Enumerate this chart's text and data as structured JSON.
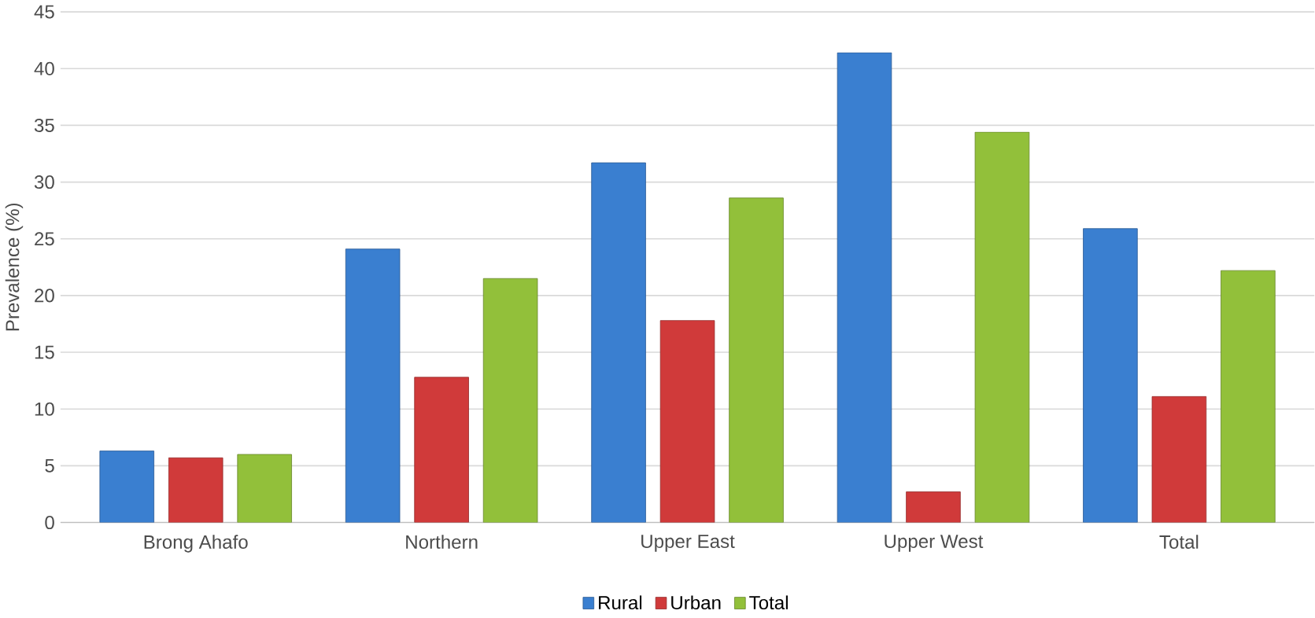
{
  "chart_data": {
    "type": "bar",
    "ylabel": "Prevalence (%)",
    "categories": [
      "Brong Ahafo",
      "Northern",
      "Upper East",
      "Upper West",
      "Total"
    ],
    "series": [
      {
        "name": "Rural",
        "color": "#3a7fd0",
        "values": [
          6.3,
          24.1,
          31.7,
          41.4,
          25.9
        ]
      },
      {
        "name": "Urban",
        "color": "#d03a3a",
        "values": [
          5.7,
          12.8,
          17.8,
          2.7,
          11.1
        ]
      },
      {
        "name": "Total",
        "color": "#92c03a",
        "values": [
          6.0,
          21.5,
          28.6,
          34.4,
          22.2
        ]
      }
    ],
    "ylim": [
      0,
      45
    ],
    "yticks": [
      0,
      5,
      10,
      15,
      20,
      25,
      30,
      35,
      40,
      45
    ],
    "grid": "y",
    "legend": "bottom"
  }
}
